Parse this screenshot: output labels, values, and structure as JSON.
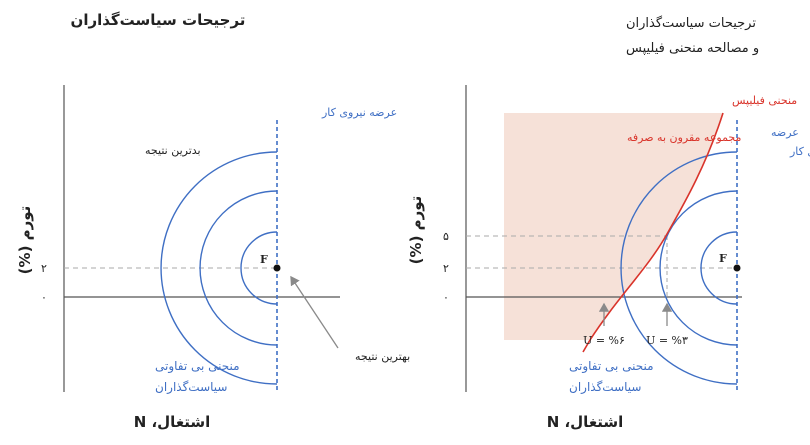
{
  "left_panel": {
    "title": "ترجیحات سیاست‌گذاران",
    "y_label": "تورم (%)",
    "x_label": "اشتغال، N",
    "tick_2": "۲",
    "tick_0": "۰",
    "labor_supply": "عرضه نیروی کار",
    "worst_outcome": "بدترین نتیجه",
    "best_outcome": "بهترین نتیجه",
    "point_F": "F",
    "indifference_line1": "منحنی بی تفاوتی",
    "indifference_line2": "سیاست‌گذاران"
  },
  "right_panel": {
    "title_line1": "ترجیحات سیاست‌گذاران",
    "title_line2": "و مصالحه منحنی فیلیپس",
    "y_label": "تورم (%)",
    "x_label": "اشتغال، N",
    "tick_5": "۵",
    "tick_2": "۲",
    "tick_0": "۰",
    "phillips_label": "منحنی فیلیپس",
    "feasible_set_label": "مجموعه مقرون به صرفه",
    "labor_supply_line1": "عرضه",
    "labor_supply_line2": "نیروی کار",
    "point_F": "F",
    "u6_label": "U = %۶",
    "u3_label": "U = %۳",
    "indifference_line1": "منحنی بی تفاوتی",
    "indifference_line2": "سیاست‌گذاران"
  },
  "colors": {
    "blue": "#3f6fc4",
    "red": "#d9342b",
    "shade": "#f6e1d8",
    "axis": "#555555",
    "dashed": "#aaaaaa"
  }
}
